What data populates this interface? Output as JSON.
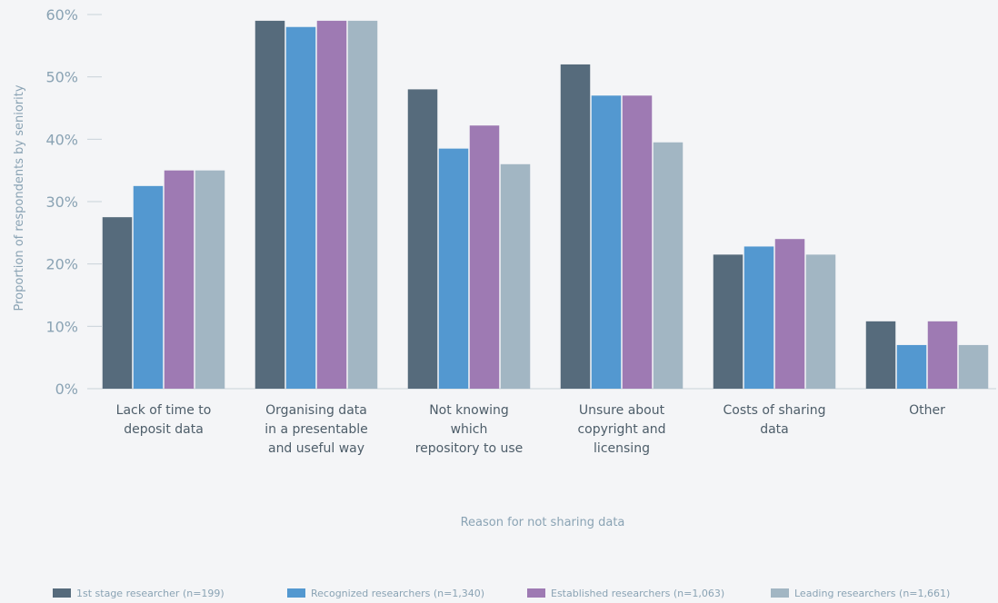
{
  "chart_data": {
    "type": "bar",
    "title": "",
    "xlabel": "Reason for not sharing data",
    "ylabel": "Proportion of respondents by seniority",
    "ylim": [
      0,
      60
    ],
    "yticks": [
      "0%",
      "10%",
      "20%",
      "30%",
      "40%",
      "50%",
      "60%"
    ],
    "grid": false,
    "legend_position": "bottom",
    "categories": [
      [
        "Lack of time to",
        "deposit data"
      ],
      [
        "Organising data",
        "in a presentable",
        "and useful way"
      ],
      [
        "Not knowing",
        "which",
        "repository to use"
      ],
      [
        "Unsure about",
        "copyright and",
        "licensing"
      ],
      [
        "Costs of sharing",
        "data"
      ],
      [
        "Other"
      ]
    ],
    "series": [
      {
        "name": "1st stage researcher (n=199)",
        "color": "#566b7c",
        "values": [
          27.5,
          59,
          48,
          52,
          21.5,
          10.8
        ]
      },
      {
        "name": "Recognized researchers (n=1,340)",
        "color": "#5398d0",
        "values": [
          32.5,
          58,
          38.5,
          47,
          22.8,
          7
        ]
      },
      {
        "name": "Established researchers (n=1,063)",
        "color": "#9e7ab3",
        "values": [
          35,
          59,
          42.2,
          47,
          24,
          10.8
        ]
      },
      {
        "name": "Leading researchers (n=1,661)",
        "color": "#a2b6c3",
        "values": [
          35,
          59,
          36,
          39.5,
          21.5,
          7
        ]
      }
    ]
  }
}
